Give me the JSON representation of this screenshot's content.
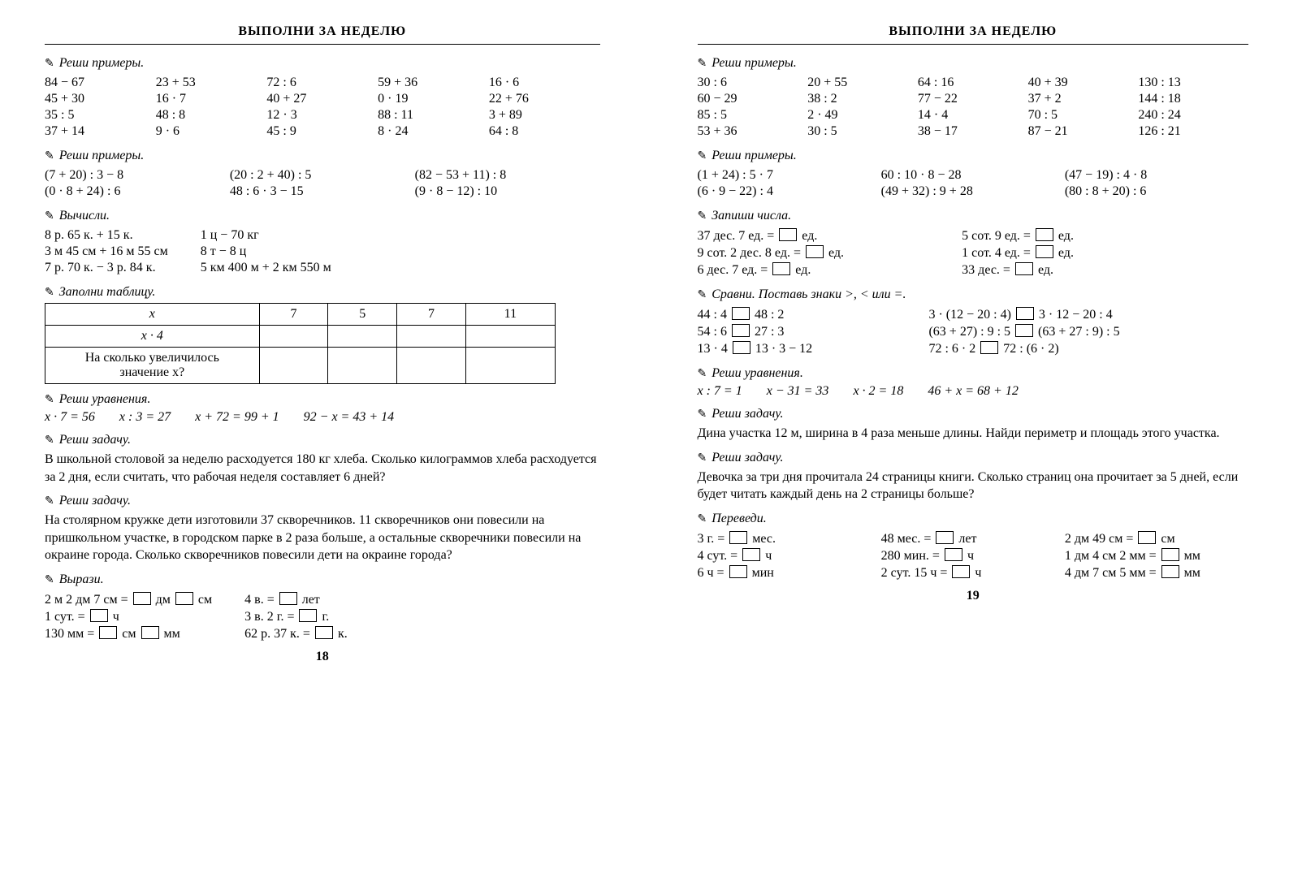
{
  "left": {
    "title": "ВЫПОЛНИ ЗА НЕДЕЛЮ",
    "s1_head": "Реши примеры.",
    "s1": [
      [
        "84 − 67",
        "23 + 53",
        "72 : 6",
        "59 + 36",
        "16 · 6"
      ],
      [
        "45 + 30",
        "16 · 7",
        "40 + 27",
        "0 · 19",
        "22 + 76"
      ],
      [
        "35 : 5",
        "48 : 8",
        "12 · 3",
        "88 : 11",
        "3 + 89"
      ],
      [
        "37 + 14",
        "9 · 6",
        "45 : 9",
        "8 · 24",
        "64 : 8"
      ]
    ],
    "s2_head": "Реши примеры.",
    "s2": [
      [
        "(7 + 20) : 3 − 8",
        "(20 : 2 + 40) : 5",
        "(82 − 53 + 11) : 8"
      ],
      [
        "(0 · 8 + 24) : 6",
        "48 : 6 · 3 − 15",
        "(9 · 8 − 12) : 10"
      ]
    ],
    "s3_head": "Вычисли.",
    "s3": [
      [
        "8 р. 65 к. + 15 к.",
        "1 ц − 70 кг"
      ],
      [
        "3 м 45 см + 16 м 55 см",
        "8 т − 8 ц"
      ],
      [
        "7 р. 70 к. − 3 р. 84 к.",
        "5 км 400 м + 2 км 550 м"
      ]
    ],
    "s4_head": "Заполни таблицу.",
    "s4_row1_label": "x",
    "s4_row1": [
      "7",
      "5",
      "7",
      "11"
    ],
    "s4_row2_label": "x · 4",
    "s4_row3_label_a": "На сколько увеличилось",
    "s4_row3_label_b": "значение x?",
    "s5_head": "Реши уравнения.",
    "s5": [
      "x · 7 = 56",
      "x : 3 = 27",
      "x + 72 = 99 + 1",
      "92 − x = 43 + 14"
    ],
    "s6_head": "Реши задачу.",
    "s6_text": "В школьной столовой за неделю расходуется 180 кг хлеба. Сколько ки­лограммов хлеба расходуется за 2 дня, если считать, что рабочая неде­ля составляет 6 дней?",
    "s7_head": "Реши задачу.",
    "s7_text": "На столярном кружке дети изготовили 37 скворечников. 11 скворечни­ков они повесили на пришкольном участке, в городском парке в 2 раза больше, а остальные скворечники повесили на окраине города. Сколько скворечников повесили дети на окраине города?",
    "s8_head": "Вырази.",
    "s8_c1": [
      "2 м 2 дм 7 см = □ дм □ см",
      "1 сут. = □ ч",
      "130 мм = □ см □ мм"
    ],
    "s8_c2": [
      "4 в. = □ лет",
      "3 в. 2 г. = □ г.",
      "62 р. 37 к. = □ к."
    ],
    "pagenum": "18"
  },
  "right": {
    "title": "ВЫПОЛНИ ЗА НЕДЕЛЮ",
    "s1_head": "Реши примеры.",
    "s1": [
      [
        "30 : 6",
        "20 + 55",
        "64 : 16",
        "40 + 39",
        "130 : 13"
      ],
      [
        "60 − 29",
        "38 : 2",
        "77 − 22",
        "37 + 2",
        "144 : 18"
      ],
      [
        "85 : 5",
        "2 · 49",
        "14 · 4",
        "70 : 5",
        "240 : 24"
      ],
      [
        "53 + 36",
        "30 : 5",
        "38 − 17",
        "87 − 21",
        "126 : 21"
      ]
    ],
    "s2_head": "Реши примеры.",
    "s2": [
      [
        "(1 + 24) : 5 · 7",
        "60 : 10 · 8 − 28",
        "(47 − 19) : 4 · 8"
      ],
      [
        "(6 · 9 − 22) : 4",
        "(49 + 32) : 9 + 28",
        "(80 : 8 + 20) : 6"
      ]
    ],
    "s3_head": "Запиши числа.",
    "s3_c1": [
      "37 дес. 7 ед. = □ ед.",
      "9 сот. 2 дес. 8 ед. = □ ед.",
      "6 дес. 7 ед. = □ ед."
    ],
    "s3_c2": [
      "5 сот. 9 ед. = □ ед.",
      "1 сот. 4 ед. = □ ед.",
      "33 дес. = □ ед."
    ],
    "s4_head": "Сравни. Поставь знаки >, < или =.",
    "s4_c1": [
      "44 : 4 □ 48 : 2",
      "54 : 6 □ 27 : 3",
      "13 · 4 □ 13 · 3 − 12"
    ],
    "s4_c2": [
      "3 · (12 − 20 : 4) □ 3 · 12 − 20 : 4",
      "(63 + 27) : 9 : 5 □ (63 + 27 : 9) : 5",
      "72 : 6 · 2 □ 72 : (6 · 2)"
    ],
    "s5_head": "Реши уравнения.",
    "s5": [
      "x : 7 = 1",
      "x − 31 = 33",
      "x · 2 = 18",
      "46 + x = 68 + 12"
    ],
    "s6_head": "Реши задачу.",
    "s6_text": "Дина участка 12 м, ширина в 4 раза меньше длины. Найди периметр и площадь этого участка.",
    "s7_head": "Реши задачу.",
    "s7_text": "Девочка за три дня прочитала 24 страницы книги. Сколько страниц она прочитает за 5 дней, если будет читать каждый день на 2 страницы больше?",
    "s8_head": "Переведи.",
    "s8_c1": [
      "3 г. = □ мес.",
      "4 сут. = □ ч",
      "6 ч = □ мин"
    ],
    "s8_c2": [
      "48 мес. = □ лет",
      "280 мин. = □ ч",
      "2 сут. 15 ч = □ ч"
    ],
    "s8_c3": [
      "2 дм 49 см = □ см",
      "1 дм 4 см 2 мм = □ мм",
      "4 дм 7 см 5 мм = □ мм"
    ],
    "pagenum": "19"
  }
}
